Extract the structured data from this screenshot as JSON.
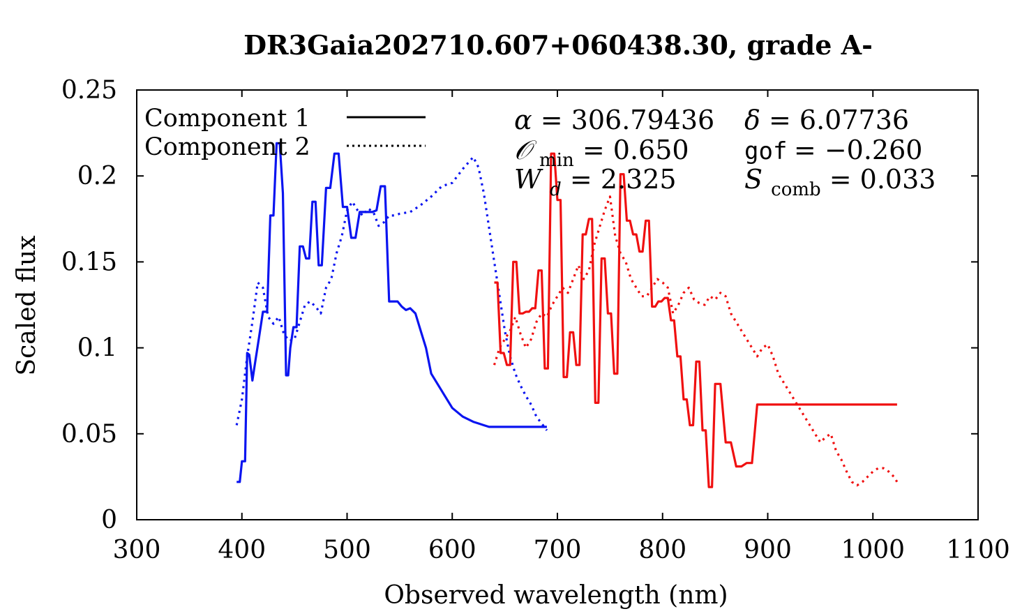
{
  "chart_data": {
    "type": "line",
    "title": "DR3Gaia202710.607+060438.30, grade A-",
    "xlabel": "Observed wavelength (nm)",
    "ylabel": "Scaled flux",
    "xlim": [
      300,
      1100
    ],
    "ylim": [
      0,
      0.25
    ],
    "x_ticks": [
      300,
      400,
      500,
      600,
      700,
      800,
      900,
      1000,
      1100
    ],
    "y_ticks": [
      0,
      0.05,
      0.1,
      0.15,
      0.2,
      0.25
    ],
    "x_tick_labels": [
      "300",
      "400",
      "500",
      "600",
      "700",
      "800",
      "900",
      "1000",
      "1100"
    ],
    "y_tick_labels": [
      "0",
      "0.05",
      "0.1",
      "0.15",
      "0.2",
      "0.25"
    ],
    "legend": [
      {
        "label": "Component 1",
        "style": "solid"
      },
      {
        "label": "Component 2",
        "style": "dotted"
      }
    ],
    "legend_position": "top-left",
    "annotations": {
      "alpha": {
        "symbol": "α",
        "value": "= 306.79436"
      },
      "delta": {
        "symbol": "δ",
        "value": "= 6.07736"
      },
      "omin": {
        "symbol": "𝒪",
        "sub": "min",
        "value": "= 0.650"
      },
      "gof": {
        "symbol": "gof",
        "value": "= −0.260"
      },
      "wd": {
        "symbol": "W",
        "sub": "d",
        "value": "= 2.325"
      },
      "scomb": {
        "symbol": "S",
        "sub": "comb",
        "value": "= 0.033"
      }
    },
    "colors": {
      "blue": "#0a14f0",
      "red": "#f01010",
      "axis": "#000000"
    },
    "series": [
      {
        "name": "Component 1 (blue)",
        "color": "#0a14f0",
        "style": "solid",
        "x": [
          395,
          398,
          400,
          403,
          405,
          407,
          410,
          413,
          416,
          420,
          424,
          427,
          430,
          433,
          436,
          439,
          442,
          444,
          446,
          449,
          452,
          455,
          458,
          461,
          464,
          467,
          470,
          473,
          476,
          480,
          484,
          488,
          492,
          496,
          500,
          504,
          508,
          512,
          516,
          520,
          524,
          528,
          532,
          536,
          540,
          544,
          548,
          552,
          556,
          560,
          565,
          570,
          575,
          580,
          590,
          600,
          610,
          620,
          625,
          630,
          635,
          640,
          644,
          648,
          652,
          656,
          660,
          664,
          668,
          672,
          676,
          680,
          684,
          688,
          690
        ],
        "y": [
          0.022,
          0.022,
          0.034,
          0.034,
          0.097,
          0.096,
          0.081,
          0.093,
          0.105,
          0.121,
          0.121,
          0.177,
          0.177,
          0.219,
          0.219,
          0.19,
          0.084,
          0.084,
          0.1,
          0.112,
          0.112,
          0.159,
          0.159,
          0.152,
          0.152,
          0.185,
          0.185,
          0.148,
          0.148,
          0.193,
          0.193,
          0.213,
          0.213,
          0.182,
          0.182,
          0.164,
          0.164,
          0.179,
          0.179,
          0.179,
          0.179,
          0.18,
          0.194,
          0.194,
          0.127,
          0.127,
          0.127,
          0.124,
          0.122,
          0.123,
          0.12,
          0.11,
          0.1,
          0.085,
          0.075,
          0.065,
          0.06,
          0.057,
          0.056,
          0.055,
          0.054,
          0.054,
          0.054,
          0.054,
          0.054,
          0.054,
          0.054,
          0.054,
          0.054,
          0.054,
          0.054,
          0.054,
          0.054,
          0.054,
          0.054
        ]
      },
      {
        "name": "Component 2 (blue)",
        "color": "#0a14f0",
        "style": "dotted",
        "x": [
          395,
          400,
          405,
          410,
          415,
          420,
          425,
          430,
          435,
          440,
          445,
          450,
          455,
          460,
          465,
          470,
          475,
          480,
          485,
          490,
          495,
          500,
          505,
          510,
          515,
          520,
          525,
          530,
          535,
          540,
          545,
          550,
          560,
          570,
          580,
          590,
          600,
          610,
          620,
          625,
          630,
          635,
          640,
          645,
          650,
          655,
          660,
          665,
          670,
          675,
          680,
          685,
          690
        ],
        "y": [
          0.055,
          0.07,
          0.095,
          0.115,
          0.138,
          0.135,
          0.118,
          0.114,
          0.118,
          0.108,
          0.104,
          0.105,
          0.115,
          0.125,
          0.127,
          0.124,
          0.12,
          0.135,
          0.14,
          0.155,
          0.165,
          0.18,
          0.185,
          0.18,
          0.177,
          0.181,
          0.179,
          0.171,
          0.173,
          0.177,
          0.177,
          0.178,
          0.179,
          0.183,
          0.188,
          0.194,
          0.196,
          0.204,
          0.211,
          0.205,
          0.19,
          0.17,
          0.15,
          0.13,
          0.11,
          0.095,
          0.085,
          0.078,
          0.072,
          0.067,
          0.06,
          0.056,
          0.052
        ]
      },
      {
        "name": "Component 1 (red)",
        "color": "#f01010",
        "style": "solid",
        "x": [
          640,
          643,
          646,
          649,
          652,
          655,
          658,
          661,
          664,
          667,
          670,
          673,
          676,
          679,
          682,
          685,
          688,
          691,
          694,
          697,
          700,
          703,
          706,
          709,
          712,
          715,
          718,
          721,
          724,
          727,
          730,
          733,
          736,
          739,
          742,
          745,
          748,
          751,
          754,
          757,
          760,
          763,
          766,
          769,
          772,
          775,
          778,
          781,
          784,
          787,
          790,
          793,
          796,
          799,
          802,
          805,
          808,
          811,
          814,
          817,
          820,
          823,
          826,
          829,
          832,
          835,
          838,
          841,
          844,
          847,
          850,
          855,
          860,
          865,
          870,
          875,
          880,
          885,
          890,
          895,
          900,
          905,
          910,
          915,
          920,
          925,
          930,
          935,
          940,
          945,
          950,
          955,
          960,
          965,
          970,
          975,
          980,
          985,
          990,
          995,
          1000,
          1005,
          1010,
          1015,
          1020,
          1023
        ],
        "y": [
          0.138,
          0.138,
          0.097,
          0.097,
          0.09,
          0.09,
          0.15,
          0.15,
          0.12,
          0.12,
          0.121,
          0.121,
          0.123,
          0.123,
          0.145,
          0.145,
          0.088,
          0.088,
          0.213,
          0.213,
          0.186,
          0.186,
          0.083,
          0.083,
          0.109,
          0.109,
          0.09,
          0.09,
          0.166,
          0.166,
          0.175,
          0.175,
          0.068,
          0.068,
          0.152,
          0.152,
          0.12,
          0.12,
          0.085,
          0.085,
          0.201,
          0.201,
          0.174,
          0.174,
          0.166,
          0.166,
          0.156,
          0.156,
          0.174,
          0.174,
          0.124,
          0.124,
          0.127,
          0.127,
          0.129,
          0.129,
          0.116,
          0.116,
          0.095,
          0.095,
          0.07,
          0.07,
          0.055,
          0.055,
          0.092,
          0.092,
          0.052,
          0.052,
          0.019,
          0.019,
          0.079,
          0.079,
          0.045,
          0.045,
          0.031,
          0.031,
          0.033,
          0.033,
          0.067,
          0.067,
          0.067,
          0.067,
          0.067,
          0.067,
          0.067,
          0.067,
          0.067,
          0.067,
          0.067,
          0.067,
          0.067,
          0.067,
          0.067,
          0.067,
          0.067,
          0.067,
          0.067,
          0.067,
          0.067,
          0.067,
          0.067,
          0.067,
          0.067,
          0.067,
          0.067,
          0.067
        ]
      },
      {
        "name": "Component 2 (red)",
        "color": "#f01010",
        "style": "dotted",
        "x": [
          640,
          645,
          650,
          655,
          660,
          665,
          670,
          675,
          680,
          685,
          690,
          695,
          700,
          705,
          710,
          715,
          720,
          725,
          730,
          735,
          740,
          745,
          750,
          755,
          760,
          765,
          770,
          775,
          780,
          785,
          790,
          795,
          800,
          805,
          810,
          815,
          820,
          825,
          830,
          835,
          840,
          845,
          850,
          855,
          860,
          865,
          870,
          875,
          880,
          885,
          890,
          895,
          900,
          905,
          910,
          915,
          920,
          925,
          930,
          935,
          940,
          945,
          950,
          955,
          960,
          965,
          970,
          975,
          980,
          985,
          990,
          995,
          1000,
          1005,
          1010,
          1015,
          1020,
          1023
        ],
        "y": [
          0.09,
          0.1,
          0.105,
          0.11,
          0.118,
          0.108,
          0.1,
          0.105,
          0.115,
          0.12,
          0.118,
          0.125,
          0.13,
          0.135,
          0.132,
          0.14,
          0.148,
          0.14,
          0.145,
          0.16,
          0.17,
          0.18,
          0.188,
          0.165,
          0.155,
          0.15,
          0.14,
          0.135,
          0.13,
          0.13,
          0.135,
          0.14,
          0.138,
          0.135,
          0.12,
          0.125,
          0.132,
          0.135,
          0.128,
          0.126,
          0.125,
          0.13,
          0.128,
          0.132,
          0.13,
          0.12,
          0.115,
          0.11,
          0.105,
          0.1,
          0.095,
          0.1,
          0.102,
          0.095,
          0.085,
          0.08,
          0.075,
          0.07,
          0.065,
          0.06,
          0.055,
          0.05,
          0.045,
          0.048,
          0.05,
          0.04,
          0.035,
          0.028,
          0.022,
          0.02,
          0.022,
          0.025,
          0.028,
          0.03,
          0.03,
          0.028,
          0.025,
          0.022
        ]
      }
    ]
  }
}
